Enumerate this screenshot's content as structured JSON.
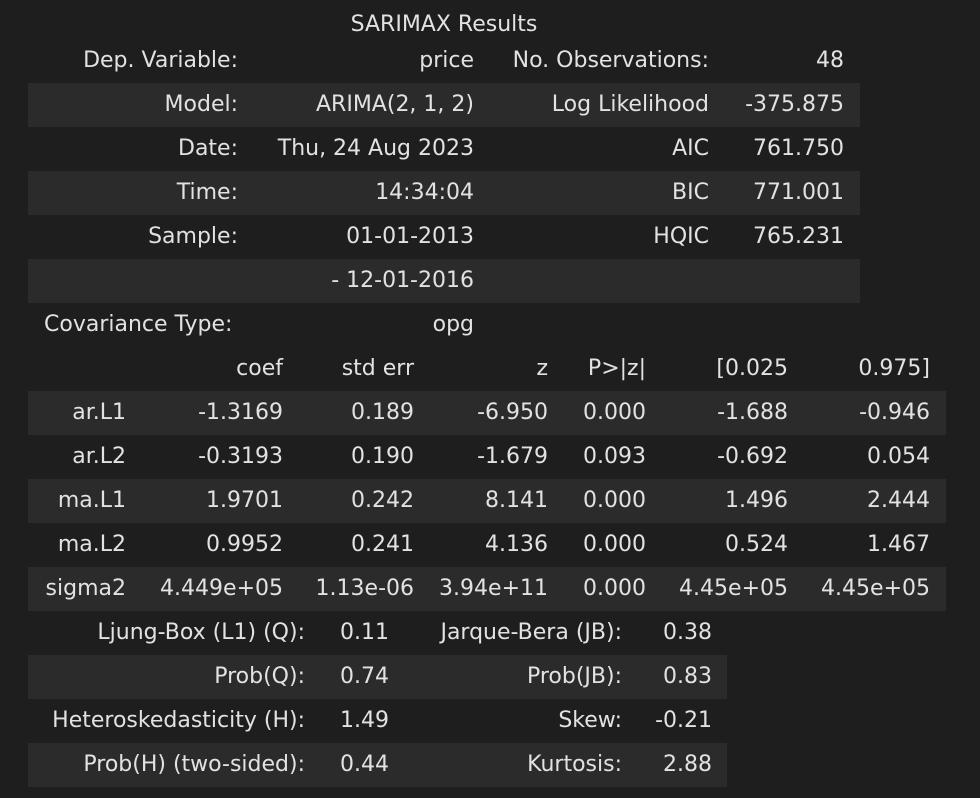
{
  "title": "SARIMAX Results",
  "summary": [
    {
      "l1": "Dep. Variable:",
      "v1": "price",
      "l2": "No. Observations:",
      "v2": "48"
    },
    {
      "l1": "Model:",
      "v1": "ARIMA(2, 1, 2)",
      "l2": "Log Likelihood",
      "v2": "-375.875"
    },
    {
      "l1": "Date:",
      "v1": "Thu, 24 Aug 2023",
      "l2": "AIC",
      "v2": "761.750"
    },
    {
      "l1": "Time:",
      "v1": "14:34:04",
      "l2": "BIC",
      "v2": "771.001"
    },
    {
      "l1": "Sample:",
      "v1": "01-01-2013",
      "l2": "HQIC",
      "v2": "765.231"
    },
    {
      "l1": "",
      "v1": "- 12-01-2016",
      "l2": "",
      "v2": ""
    },
    {
      "l1": "Covariance Type:",
      "v1": "opg",
      "l2": "",
      "v2": ""
    }
  ],
  "coef_table": {
    "headers": [
      "",
      "coef",
      "std err",
      "z",
      "P>|z|",
      "[0.025",
      "0.975]"
    ],
    "rows": [
      [
        "ar.L1",
        "-1.3169",
        "0.189",
        "-6.950",
        "0.000",
        "-1.688",
        "-0.946"
      ],
      [
        "ar.L2",
        "-0.3193",
        "0.190",
        "-1.679",
        "0.093",
        "-0.692",
        "0.054"
      ],
      [
        "ma.L1",
        "1.9701",
        "0.242",
        "8.141",
        "0.000",
        "1.496",
        "2.444"
      ],
      [
        "ma.L2",
        "0.9952",
        "0.241",
        "4.136",
        "0.000",
        "0.524",
        "1.467"
      ],
      [
        "sigma2",
        "4.449e+05",
        "1.13e-06",
        "3.94e+11",
        "0.000",
        "4.45e+05",
        "4.45e+05"
      ]
    ]
  },
  "diagnostics": [
    {
      "l1": "Ljung-Box (L1) (Q):",
      "v1": "0.11",
      "l2": "Jarque-Bera (JB):",
      "v2": "0.38"
    },
    {
      "l1": "Prob(Q):",
      "v1": "0.74",
      "l2": "Prob(JB):",
      "v2": "0.83"
    },
    {
      "l1": "Heteroskedasticity (H):",
      "v1": "1.49",
      "l2": "Skew:",
      "v2": "-0.21"
    },
    {
      "l1": "Prob(H) (two-sided):",
      "v1": "0.44",
      "l2": "Kurtosis:",
      "v2": "2.88"
    }
  ]
}
